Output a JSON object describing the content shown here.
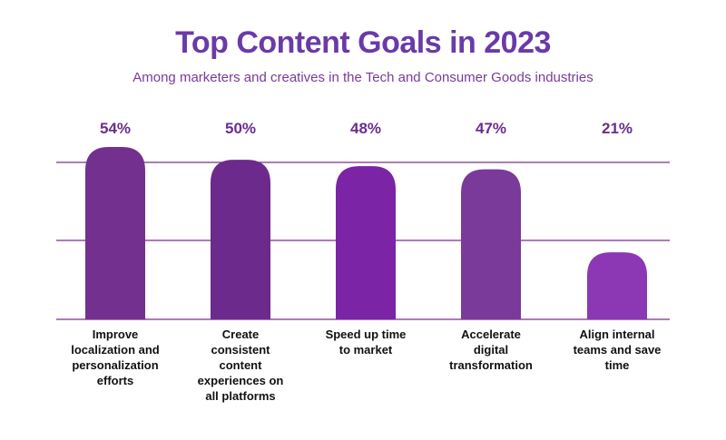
{
  "chart_data": {
    "type": "bar",
    "title": "Top Content Goals in 2023",
    "subtitle": "Among marketers and creatives in the Tech and Consumer Goods industries",
    "categories": [
      "Improve localization and personalization efforts",
      "Create consistent content experiences on all platforms",
      "Speed up time to market",
      "Accelerate digital transformation",
      "Align internal teams and save time"
    ],
    "category_lines": [
      [
        "Improve",
        "localization and",
        "personalization",
        "efforts"
      ],
      [
        "Create",
        "consistent",
        "content",
        "experiences on",
        "all platforms"
      ],
      [
        "Speed up time",
        "to market"
      ],
      [
        "Accelerate",
        "digital",
        "transformation"
      ],
      [
        "Align internal",
        "teams and save",
        "time"
      ]
    ],
    "values": [
      54,
      50,
      48,
      47,
      21
    ],
    "value_labels": [
      "54%",
      "50%",
      "48%",
      "47%",
      "21%"
    ],
    "unit": "%",
    "ylim": [
      0,
      54
    ],
    "grid": true,
    "legend": "none"
  },
  "colors": {
    "title": "#6a3aa8",
    "subtitle": "#7a3a9a",
    "value_label": "#6a2d8f",
    "gridline": "#7a2e8e",
    "bars": [
      "#74308e",
      "#6c2a8c",
      "#7b24a6",
      "#7a3a9a",
      "#8c38b4"
    ]
  }
}
